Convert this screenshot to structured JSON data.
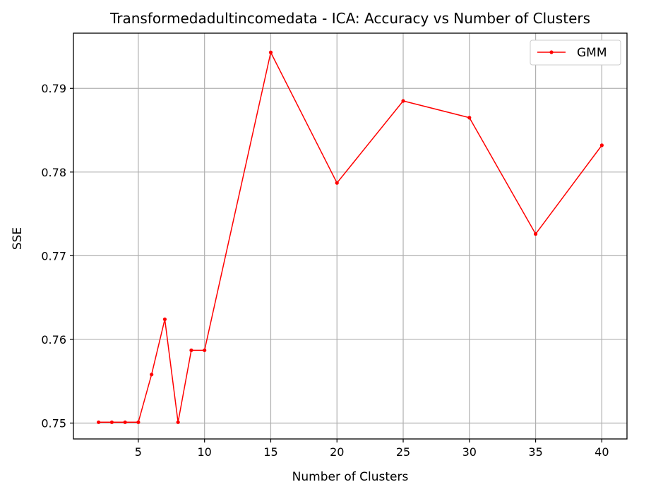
{
  "chart_data": {
    "type": "line",
    "title": "Transformedadultincomedata - ICA: Accuracy vs Number of Clusters",
    "xlabel": "Number of Clusters",
    "ylabel": "SSE",
    "xlim": [
      0.1,
      41.9
    ],
    "ylim": [
      0.7481,
      0.7966
    ],
    "xticks": [
      5,
      10,
      15,
      20,
      25,
      30,
      35,
      40
    ],
    "xtick_labels": [
      "5",
      "10",
      "15",
      "20",
      "25",
      "30",
      "35",
      "40"
    ],
    "yticks": [
      0.75,
      0.76,
      0.77,
      0.78,
      0.79
    ],
    "ytick_labels": [
      "0.75",
      "0.76",
      "0.77",
      "0.78",
      "0.79"
    ],
    "grid": true,
    "legend_position": "top-right",
    "series": [
      {
        "name": "GMM",
        "color": "#ff0000",
        "marker": "dot",
        "x": [
          2,
          3,
          4,
          5,
          6,
          7,
          8,
          9,
          10,
          15,
          20,
          25,
          30,
          35,
          40
        ],
        "y": [
          0.7501,
          0.7501,
          0.7501,
          0.7501,
          0.7558,
          0.7624,
          0.7501,
          0.7587,
          0.7587,
          0.7943,
          0.7787,
          0.7885,
          0.7865,
          0.7726,
          0.7832
        ]
      }
    ]
  }
}
